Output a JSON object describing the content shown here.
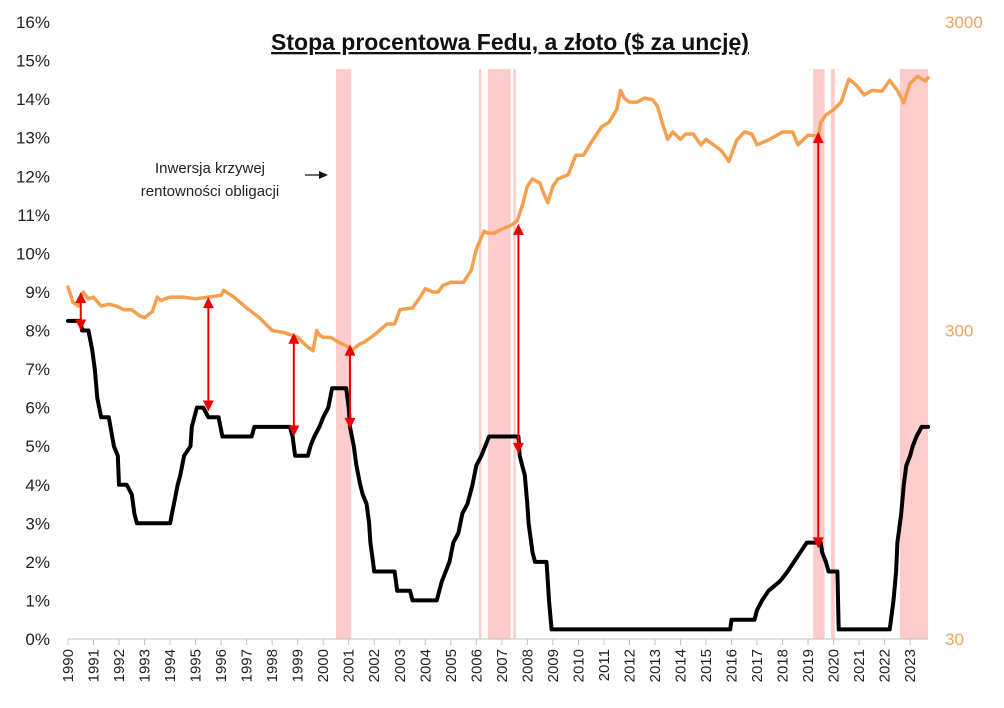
{
  "chart_data": {
    "type": "line",
    "title": "Stopa procentowa Fedu, a złoto ($ za uncję)",
    "x_ticks": [
      "1990",
      "1991",
      "1992",
      "1993",
      "1994",
      "1995",
      "1996",
      "1997",
      "1998",
      "1999",
      "2000",
      "2001",
      "2002",
      "2003",
      "2004",
      "2005",
      "2006",
      "2007",
      "2008",
      "2009",
      "2010",
      "2011",
      "2012",
      "2013",
      "2014",
      "2015",
      "2016",
      "2017",
      "2018",
      "2019",
      "2020",
      "2021",
      "2022",
      "2023"
    ],
    "x_range": [
      1990,
      2023.7
    ],
    "y_left": {
      "ticks": [
        "0%",
        "1%",
        "2%",
        "3%",
        "4%",
        "5%",
        "6%",
        "7%",
        "8%",
        "9%",
        "10%",
        "11%",
        "12%",
        "13%",
        "14%",
        "15%",
        "16%"
      ],
      "range": [
        0,
        16
      ]
    },
    "y_right": {
      "ticks": [
        "30",
        "300",
        "3000"
      ],
      "range": [
        30,
        3000
      ],
      "scale": "log"
    },
    "annotation": {
      "lines": [
        "Inwersja krzywej",
        "rentowności obligacji"
      ]
    },
    "inversion_periods": [
      [
        2000.5,
        2001.1
      ],
      [
        2006.1,
        2006.2
      ],
      [
        2006.45,
        2007.35
      ],
      [
        2007.45,
        2007.55
      ],
      [
        2019.2,
        2019.65
      ],
      [
        2019.9,
        2020.05
      ],
      [
        2022.6,
        2023.7
      ]
    ],
    "colors": {
      "fed": "#000000",
      "gold": "#f4a04e",
      "inversion": "#ffcccc",
      "arrow": "#ee0000"
    },
    "series": [
      {
        "name": "Stopa procentowa Fedu",
        "axis": "left",
        "points": [
          [
            1990.0,
            8.25
          ],
          [
            1990.5,
            8.25
          ],
          [
            1990.55,
            8.0
          ],
          [
            1990.8,
            8.0
          ],
          [
            1990.95,
            7.5
          ],
          [
            1991.05,
            7.0
          ],
          [
            1991.15,
            6.25
          ],
          [
            1991.3,
            5.75
          ],
          [
            1991.6,
            5.75
          ],
          [
            1991.8,
            5.0
          ],
          [
            1991.95,
            4.75
          ],
          [
            1992.0,
            4.0
          ],
          [
            1992.3,
            4.0
          ],
          [
            1992.5,
            3.75
          ],
          [
            1992.6,
            3.25
          ],
          [
            1992.7,
            3.0
          ],
          [
            1994.0,
            3.0
          ],
          [
            1994.15,
            3.5
          ],
          [
            1994.3,
            4.0
          ],
          [
            1994.4,
            4.25
          ],
          [
            1994.55,
            4.75
          ],
          [
            1994.8,
            5.0
          ],
          [
            1994.85,
            5.5
          ],
          [
            1995.05,
            6.0
          ],
          [
            1995.3,
            6.0
          ],
          [
            1995.5,
            5.75
          ],
          [
            1995.9,
            5.75
          ],
          [
            1996.05,
            5.25
          ],
          [
            1997.2,
            5.25
          ],
          [
            1997.3,
            5.5
          ],
          [
            1998.7,
            5.5
          ],
          [
            1998.8,
            5.25
          ],
          [
            1998.9,
            4.75
          ],
          [
            1999.4,
            4.75
          ],
          [
            1999.5,
            5.0
          ],
          [
            1999.65,
            5.25
          ],
          [
            1999.85,
            5.5
          ],
          [
            2000.0,
            5.75
          ],
          [
            2000.2,
            6.0
          ],
          [
            2000.35,
            6.5
          ],
          [
            2000.9,
            6.5
          ],
          [
            2001.0,
            6.0
          ],
          [
            2001.05,
            5.5
          ],
          [
            2001.2,
            5.0
          ],
          [
            2001.3,
            4.5
          ],
          [
            2001.45,
            4.0
          ],
          [
            2001.55,
            3.75
          ],
          [
            2001.7,
            3.5
          ],
          [
            2001.8,
            3.0
          ],
          [
            2001.85,
            2.5
          ],
          [
            2001.95,
            2.0
          ],
          [
            2002.0,
            1.75
          ],
          [
            2002.8,
            1.75
          ],
          [
            2002.9,
            1.25
          ],
          [
            2003.4,
            1.25
          ],
          [
            2003.5,
            1.0
          ],
          [
            2004.45,
            1.0
          ],
          [
            2004.55,
            1.25
          ],
          [
            2004.65,
            1.5
          ],
          [
            2004.8,
            1.75
          ],
          [
            2004.95,
            2.0
          ],
          [
            2005.1,
            2.5
          ],
          [
            2005.3,
            2.75
          ],
          [
            2005.45,
            3.25
          ],
          [
            2005.65,
            3.5
          ],
          [
            2005.85,
            4.0
          ],
          [
            2006.0,
            4.5
          ],
          [
            2006.2,
            4.75
          ],
          [
            2006.35,
            5.0
          ],
          [
            2006.5,
            5.25
          ],
          [
            2007.65,
            5.25
          ],
          [
            2007.7,
            4.75
          ],
          [
            2007.8,
            4.5
          ],
          [
            2007.9,
            4.25
          ],
          [
            2008.0,
            3.5
          ],
          [
            2008.05,
            3.0
          ],
          [
            2008.2,
            2.25
          ],
          [
            2008.3,
            2.0
          ],
          [
            2008.75,
            2.0
          ],
          [
            2008.8,
            1.5
          ],
          [
            2008.85,
            1.0
          ],
          [
            2008.95,
            0.25
          ],
          [
            2015.95,
            0.25
          ],
          [
            2016.0,
            0.5
          ],
          [
            2016.9,
            0.5
          ],
          [
            2017.0,
            0.75
          ],
          [
            2017.2,
            1.0
          ],
          [
            2017.45,
            1.25
          ],
          [
            2017.9,
            1.5
          ],
          [
            2018.2,
            1.75
          ],
          [
            2018.45,
            2.0
          ],
          [
            2018.7,
            2.25
          ],
          [
            2018.95,
            2.5
          ],
          [
            2019.5,
            2.5
          ],
          [
            2019.55,
            2.25
          ],
          [
            2019.7,
            2.0
          ],
          [
            2019.8,
            1.75
          ],
          [
            2020.15,
            1.75
          ],
          [
            2020.2,
            0.25
          ],
          [
            2022.2,
            0.25
          ],
          [
            2022.25,
            0.5
          ],
          [
            2022.35,
            1.0
          ],
          [
            2022.45,
            1.75
          ],
          [
            2022.5,
            2.5
          ],
          [
            2022.65,
            3.25
          ],
          [
            2022.75,
            4.0
          ],
          [
            2022.85,
            4.5
          ],
          [
            2023.0,
            4.75
          ],
          [
            2023.1,
            5.0
          ],
          [
            2023.25,
            5.25
          ],
          [
            2023.45,
            5.5
          ],
          [
            2023.7,
            5.5
          ]
        ]
      },
      {
        "name": "Złoto ($ za uncję)",
        "axis": "right",
        "points": [
          [
            1990.0,
            415
          ],
          [
            1990.2,
            370
          ],
          [
            1990.4,
            360
          ],
          [
            1990.6,
            400
          ],
          [
            1990.8,
            380
          ],
          [
            1991.0,
            385
          ],
          [
            1991.3,
            360
          ],
          [
            1991.6,
            365
          ],
          [
            1991.9,
            360
          ],
          [
            1992.2,
            350
          ],
          [
            1992.5,
            350
          ],
          [
            1992.8,
            335
          ],
          [
            1993.0,
            330
          ],
          [
            1993.3,
            345
          ],
          [
            1993.5,
            385
          ],
          [
            1993.65,
            375
          ],
          [
            1993.8,
            380
          ],
          [
            1994.0,
            385
          ],
          [
            1994.5,
            385
          ],
          [
            1995.0,
            380
          ],
          [
            1995.5,
            385
          ],
          [
            1996.0,
            390
          ],
          [
            1996.1,
            405
          ],
          [
            1996.5,
            385
          ],
          [
            1997.0,
            355
          ],
          [
            1997.5,
            330
          ],
          [
            1998.0,
            300
          ],
          [
            1998.5,
            295
          ],
          [
            1999.0,
            285
          ],
          [
            1999.4,
            265
          ],
          [
            1999.6,
            258
          ],
          [
            1999.75,
            300
          ],
          [
            1999.85,
            290
          ],
          [
            2000.0,
            285
          ],
          [
            2000.3,
            285
          ],
          [
            2000.6,
            275
          ],
          [
            2001.0,
            265
          ],
          [
            2001.15,
            260
          ],
          [
            2001.4,
            270
          ],
          [
            2001.6,
            275
          ],
          [
            2002.0,
            290
          ],
          [
            2002.5,
            315
          ],
          [
            2002.8,
            315
          ],
          [
            2003.0,
            350
          ],
          [
            2003.5,
            355
          ],
          [
            2003.8,
            385
          ],
          [
            2004.0,
            410
          ],
          [
            2004.3,
            400
          ],
          [
            2004.5,
            400
          ],
          [
            2004.7,
            420
          ],
          [
            2005.0,
            430
          ],
          [
            2005.5,
            430
          ],
          [
            2005.8,
            470
          ],
          [
            2006.0,
            550
          ],
          [
            2006.3,
            630
          ],
          [
            2006.45,
            620
          ],
          [
            2006.7,
            620
          ],
          [
            2007.0,
            640
          ],
          [
            2007.4,
            660
          ],
          [
            2007.6,
            680
          ],
          [
            2007.8,
            760
          ],
          [
            2008.0,
            880
          ],
          [
            2008.2,
            930
          ],
          [
            2008.5,
            900
          ],
          [
            2008.6,
            850
          ],
          [
            2008.8,
            780
          ],
          [
            2009.0,
            880
          ],
          [
            2009.2,
            930
          ],
          [
            2009.6,
            960
          ],
          [
            2009.9,
            1110
          ],
          [
            2010.2,
            1110
          ],
          [
            2010.5,
            1220
          ],
          [
            2010.9,
            1370
          ],
          [
            2011.2,
            1420
          ],
          [
            2011.5,
            1560
          ],
          [
            2011.65,
            1800
          ],
          [
            2011.8,
            1700
          ],
          [
            2012.0,
            1650
          ],
          [
            2012.3,
            1650
          ],
          [
            2012.6,
            1700
          ],
          [
            2012.9,
            1680
          ],
          [
            2013.1,
            1600
          ],
          [
            2013.3,
            1400
          ],
          [
            2013.5,
            1250
          ],
          [
            2013.7,
            1320
          ],
          [
            2014.0,
            1250
          ],
          [
            2014.2,
            1300
          ],
          [
            2014.5,
            1300
          ],
          [
            2014.8,
            1200
          ],
          [
            2015.0,
            1250
          ],
          [
            2015.3,
            1200
          ],
          [
            2015.6,
            1150
          ],
          [
            2015.9,
            1060
          ],
          [
            2016.2,
            1240
          ],
          [
            2016.5,
            1320
          ],
          [
            2016.8,
            1300
          ],
          [
            2017.0,
            1200
          ],
          [
            2017.5,
            1250
          ],
          [
            2018.0,
            1320
          ],
          [
            2018.4,
            1320
          ],
          [
            2018.6,
            1200
          ],
          [
            2019.0,
            1290
          ],
          [
            2019.4,
            1280
          ],
          [
            2019.5,
            1420
          ],
          [
            2019.7,
            1500
          ],
          [
            2020.0,
            1560
          ],
          [
            2020.3,
            1650
          ],
          [
            2020.6,
            1960
          ],
          [
            2020.9,
            1870
          ],
          [
            2021.2,
            1740
          ],
          [
            2021.5,
            1800
          ],
          [
            2021.9,
            1790
          ],
          [
            2022.2,
            1940
          ],
          [
            2022.5,
            1800
          ],
          [
            2022.75,
            1640
          ],
          [
            2023.0,
            1900
          ],
          [
            2023.3,
            2000
          ],
          [
            2023.5,
            1950
          ],
          [
            2023.6,
            1930
          ],
          [
            2023.7,
            1980
          ]
        ]
      }
    ],
    "arrows": [
      {
        "x": 1990.5,
        "from_pct": 8.0,
        "to_right": 400,
        "heads": "both"
      },
      {
        "x": 1995.5,
        "from_pct": 5.9,
        "to_right": 385,
        "heads": "both"
      },
      {
        "x": 1998.85,
        "from_pct": 5.25,
        "to_right": 295,
        "heads": "both"
      },
      {
        "x": 2001.05,
        "from_pct": 5.45,
        "to_right": 270,
        "heads": "both"
      },
      {
        "x": 2007.65,
        "from_pct": 4.8,
        "to_right": 665,
        "heads": "both"
      },
      {
        "x": 2019.4,
        "from_pct": 2.35,
        "to_right": 1320,
        "heads": "both"
      }
    ]
  }
}
